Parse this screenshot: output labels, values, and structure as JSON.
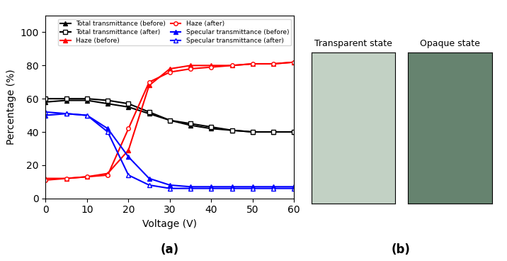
{
  "chart_data": {
    "type": "line",
    "xlabel": "Voltage (V)",
    "ylabel": "Percentage (%)",
    "x": [
      0,
      5,
      10,
      15,
      20,
      25,
      30,
      35,
      40,
      45,
      50,
      55,
      60
    ],
    "xlim": [
      0,
      60
    ],
    "ylim": [
      0,
      110
    ],
    "xticks": [
      0,
      10,
      20,
      30,
      40,
      50,
      60
    ],
    "yticks": [
      0,
      20,
      40,
      60,
      80,
      100
    ],
    "legend": "upper right",
    "series": [
      {
        "name": "Total transmittance (before)",
        "color": "black",
        "marker": "triangle",
        "values": [
          58,
          59,
          59,
          57,
          55,
          51,
          47,
          44,
          42,
          41,
          40,
          40,
          40
        ]
      },
      {
        "name": "Total transmittance (after)",
        "color": "black",
        "marker": "open_square",
        "values": [
          60,
          60,
          60,
          59,
          57,
          52,
          47,
          45,
          43,
          41,
          40,
          40,
          40
        ]
      },
      {
        "name": "Haze (before)",
        "color": "red",
        "marker": "triangle",
        "values": [
          12,
          12,
          13,
          15,
          29,
          68,
          78,
          80,
          80,
          80,
          81,
          81,
          82
        ]
      },
      {
        "name": "Haze (after)",
        "color": "red",
        "marker": "open_circle",
        "values": [
          11,
          12,
          13,
          14,
          42,
          70,
          76,
          78,
          79,
          80,
          81,
          81,
          82
        ]
      },
      {
        "name": "Specular transmittance (before)",
        "color": "blue",
        "marker": "triangle",
        "values": [
          50,
          51,
          50,
          42,
          25,
          12,
          8,
          7,
          7,
          7,
          7,
          7,
          7
        ]
      },
      {
        "name": "Specular transmittance (after)",
        "color": "blue",
        "marker": "open_triangle",
        "values": [
          52,
          51,
          50,
          40,
          14,
          8,
          6,
          6,
          6,
          6,
          6,
          6,
          6
        ]
      }
    ],
    "panels": [
      {
        "title": "Transparent state",
        "color": "#c2d1c4"
      },
      {
        "title": "Opaque state",
        "color": "#66836f"
      }
    ],
    "annotations": [
      "(a)",
      "(b)"
    ]
  }
}
